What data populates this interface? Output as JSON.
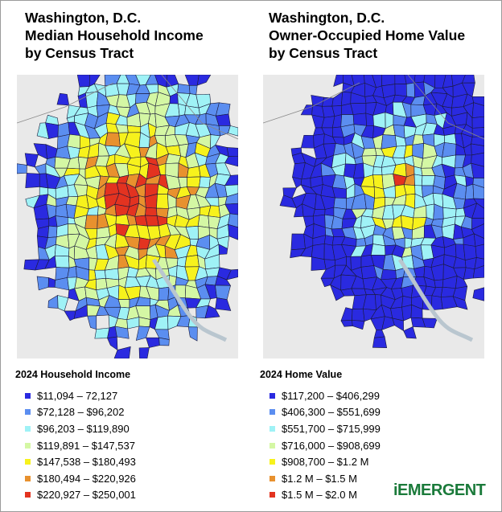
{
  "panels": [
    {
      "title": [
        "Washington, D.C.",
        "Median Household Income",
        "by Census Tract"
      ],
      "legend": {
        "title": "2024 Household Income",
        "items": [
          {
            "label": "$11,094 – 72,127",
            "color": "#2a2ae0"
          },
          {
            "label": "$72,128 – $96,202",
            "color": "#5b8ef0"
          },
          {
            "label": "$96,203 – $119,890",
            "color": "#9ff2f6"
          },
          {
            "label": "$119,891 – $147,537",
            "color": "#d4f7a4"
          },
          {
            "label": "$147,538 – $180,493",
            "color": "#f7f21c"
          },
          {
            "label": "$180,494 – $220,926",
            "color": "#e8912e"
          },
          {
            "label": "$220,927 – $250,001",
            "color": "#e33320"
          }
        ]
      }
    },
    {
      "title": [
        "Washington, D.C.",
        "Owner-Occupied Home Value",
        "by Census Tract"
      ],
      "legend": {
        "title": "2024 Home Value",
        "items": [
          {
            "label": "$117,200 – $406,299",
            "color": "#2a2ae0"
          },
          {
            "label": "$406,300 – $551,699",
            "color": "#5b8ef0"
          },
          {
            "label": "$551,700 – $715,999",
            "color": "#9ff2f6"
          },
          {
            "label": "$716,000 – $908,699",
            "color": "#d4f7a4"
          },
          {
            "label": "$908,700 – $1.2 M",
            "color": "#f7f21c"
          },
          {
            "label": "$1.2 M – $1.5 M",
            "color": "#e8912e"
          },
          {
            "label": "$1.5 M – $2.0 M",
            "color": "#e33320"
          }
        ]
      }
    }
  ],
  "logo": "iEMERGENT"
}
